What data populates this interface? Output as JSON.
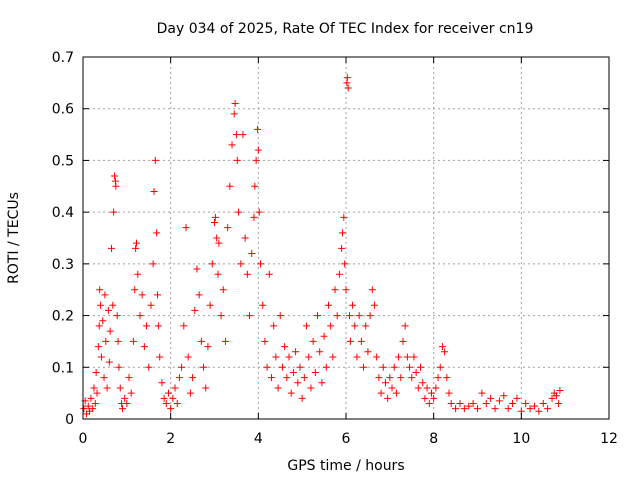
{
  "chart_data": {
    "type": "scatter",
    "title": "Day 034 of 2025, Rate Of TEC Index for receiver cn19",
    "xlabel": "GPS time / hours",
    "ylabel": "ROTI / TECUs",
    "xlim": [
      0,
      12
    ],
    "ylim": [
      0,
      0.7
    ],
    "xticks": [
      "0",
      "2",
      "4",
      "6",
      "8",
      "10",
      "12"
    ],
    "yticks": [
      "0",
      "0.1",
      "0.2",
      "0.3",
      "0.4",
      "0.5",
      "0.6",
      "0.7"
    ],
    "xtick_values": [
      0,
      2,
      4,
      6,
      8,
      10,
      12
    ],
    "ytick_values": [
      0,
      0.1,
      0.2,
      0.3,
      0.4,
      0.5,
      0.6,
      0.7
    ],
    "grid": true,
    "marker": "+",
    "color": "#ff0000",
    "series": [
      {
        "name": "ROTI",
        "points": [
          [
            0.02,
            0.02
          ],
          [
            0.05,
            0.035
          ],
          [
            0.08,
            0.01
          ],
          [
            0.12,
            0.025
          ],
          [
            0.15,
            0.015
          ],
          [
            0.18,
            0.04
          ],
          [
            0.22,
            0.02
          ],
          [
            0.25,
            0.06
          ],
          [
            0.28,
            0.03
          ],
          [
            0.3,
            0.09
          ],
          [
            0.32,
            0.05
          ],
          [
            0.35,
            0.14
          ],
          [
            0.37,
            0.18
          ],
          [
            0.38,
            0.25
          ],
          [
            0.4,
            0.22
          ],
          [
            0.42,
            0.12
          ],
          [
            0.45,
            0.19
          ],
          [
            0.48,
            0.08
          ],
          [
            0.5,
            0.24
          ],
          [
            0.52,
            0.15
          ],
          [
            0.55,
            0.06
          ],
          [
            0.58,
            0.21
          ],
          [
            0.6,
            0.11
          ],
          [
            0.62,
            0.17
          ],
          [
            0.65,
            0.33
          ],
          [
            0.68,
            0.22
          ],
          [
            0.7,
            0.4
          ],
          [
            0.72,
            0.47
          ],
          [
            0.74,
            0.46
          ],
          [
            0.75,
            0.45
          ],
          [
            0.78,
            0.2
          ],
          [
            0.8,
            0.15
          ],
          [
            0.82,
            0.1
          ],
          [
            0.85,
            0.06
          ],
          [
            0.88,
            0.03
          ],
          [
            0.9,
            0.02
          ],
          [
            0.95,
            0.04
          ],
          [
            1.0,
            0.03
          ],
          [
            1.05,
            0.08
          ],
          [
            1.1,
            0.05
          ],
          [
            1.15,
            0.15
          ],
          [
            1.18,
            0.25
          ],
          [
            1.2,
            0.33
          ],
          [
            1.22,
            0.34
          ],
          [
            1.25,
            0.28
          ],
          [
            1.3,
            0.2
          ],
          [
            1.35,
            0.24
          ],
          [
            1.4,
            0.14
          ],
          [
            1.45,
            0.18
          ],
          [
            1.5,
            0.1
          ],
          [
            1.55,
            0.22
          ],
          [
            1.6,
            0.3
          ],
          [
            1.62,
            0.44
          ],
          [
            1.65,
            0.5
          ],
          [
            1.68,
            0.36
          ],
          [
            1.7,
            0.24
          ],
          [
            1.72,
            0.18
          ],
          [
            1.75,
            0.12
          ],
          [
            1.8,
            0.07
          ],
          [
            1.85,
            0.04
          ],
          [
            1.9,
            0.03
          ],
          [
            1.95,
            0.05
          ],
          [
            2.0,
            0.02
          ],
          [
            2.05,
            0.04
          ],
          [
            2.1,
            0.06
          ],
          [
            2.15,
            0.03
          ],
          [
            2.2,
            0.08
          ],
          [
            2.25,
            0.1
          ],
          [
            2.3,
            0.18
          ],
          [
            2.35,
            0.37
          ],
          [
            2.4,
            0.12
          ],
          [
            2.45,
            0.05
          ],
          [
            2.5,
            0.08
          ],
          [
            2.55,
            0.21
          ],
          [
            2.6,
            0.29
          ],
          [
            2.65,
            0.24
          ],
          [
            2.7,
            0.15
          ],
          [
            2.75,
            0.1
          ],
          [
            2.8,
            0.06
          ],
          [
            2.85,
            0.14
          ],
          [
            2.9,
            0.22
          ],
          [
            2.95,
            0.3
          ],
          [
            3.0,
            0.38
          ],
          [
            3.02,
            0.39
          ],
          [
            3.05,
            0.35
          ],
          [
            3.08,
            0.28
          ],
          [
            3.1,
            0.34
          ],
          [
            3.15,
            0.2
          ],
          [
            3.2,
            0.25
          ],
          [
            3.25,
            0.15
          ],
          [
            3.3,
            0.37
          ],
          [
            3.35,
            0.45
          ],
          [
            3.4,
            0.53
          ],
          [
            3.45,
            0.59
          ],
          [
            3.47,
            0.61
          ],
          [
            3.5,
            0.55
          ],
          [
            3.52,
            0.5
          ],
          [
            3.55,
            0.4
          ],
          [
            3.6,
            0.3
          ],
          [
            3.65,
            0.55
          ],
          [
            3.7,
            0.35
          ],
          [
            3.75,
            0.28
          ],
          [
            3.8,
            0.2
          ],
          [
            3.85,
            0.32
          ],
          [
            3.9,
            0.39
          ],
          [
            3.92,
            0.45
          ],
          [
            3.95,
            0.5
          ],
          [
            3.98,
            0.56
          ],
          [
            4.0,
            0.52
          ],
          [
            4.02,
            0.4
          ],
          [
            4.05,
            0.3
          ],
          [
            4.1,
            0.22
          ],
          [
            4.15,
            0.15
          ],
          [
            4.2,
            0.1
          ],
          [
            4.25,
            0.28
          ],
          [
            4.3,
            0.08
          ],
          [
            4.35,
            0.18
          ],
          [
            4.4,
            0.12
          ],
          [
            4.45,
            0.06
          ],
          [
            4.5,
            0.2
          ],
          [
            4.55,
            0.1
          ],
          [
            4.6,
            0.14
          ],
          [
            4.65,
            0.08
          ],
          [
            4.7,
            0.12
          ],
          [
            4.75,
            0.05
          ],
          [
            4.8,
            0.09
          ],
          [
            4.85,
            0.13
          ],
          [
            4.9,
            0.07
          ],
          [
            4.95,
            0.1
          ],
          [
            5.0,
            0.04
          ],
          [
            5.05,
            0.08
          ],
          [
            5.1,
            0.18
          ],
          [
            5.15,
            0.12
          ],
          [
            5.2,
            0.06
          ],
          [
            5.25,
            0.15
          ],
          [
            5.3,
            0.09
          ],
          [
            5.35,
            0.2
          ],
          [
            5.4,
            0.13
          ],
          [
            5.45,
            0.07
          ],
          [
            5.5,
            0.16
          ],
          [
            5.55,
            0.1
          ],
          [
            5.6,
            0.22
          ],
          [
            5.65,
            0.18
          ],
          [
            5.7,
            0.12
          ],
          [
            5.75,
            0.25
          ],
          [
            5.8,
            0.2
          ],
          [
            5.85,
            0.28
          ],
          [
            5.9,
            0.33
          ],
          [
            5.92,
            0.36
          ],
          [
            5.95,
            0.39
          ],
          [
            5.97,
            0.3
          ],
          [
            6.0,
            0.25
          ],
          [
            6.02,
            0.65
          ],
          [
            6.03,
            0.66
          ],
          [
            6.05,
            0.64
          ],
          [
            6.08,
            0.2
          ],
          [
            6.1,
            0.15
          ],
          [
            6.15,
            0.22
          ],
          [
            6.2,
            0.18
          ],
          [
            6.25,
            0.12
          ],
          [
            6.3,
            0.2
          ],
          [
            6.35,
            0.15
          ],
          [
            6.4,
            0.1
          ],
          [
            6.45,
            0.18
          ],
          [
            6.5,
            0.13
          ],
          [
            6.55,
            0.2
          ],
          [
            6.6,
            0.25
          ],
          [
            6.65,
            0.22
          ],
          [
            6.7,
            0.12
          ],
          [
            6.75,
            0.08
          ],
          [
            6.8,
            0.05
          ],
          [
            6.85,
            0.1
          ],
          [
            6.9,
            0.07
          ],
          [
            6.95,
            0.04
          ],
          [
            7.0,
            0.08
          ],
          [
            7.05,
            0.06
          ],
          [
            7.1,
            0.1
          ],
          [
            7.15,
            0.05
          ],
          [
            7.2,
            0.12
          ],
          [
            7.25,
            0.08
          ],
          [
            7.3,
            0.15
          ],
          [
            7.35,
            0.18
          ],
          [
            7.4,
            0.12
          ],
          [
            7.45,
            0.1
          ],
          [
            7.5,
            0.08
          ],
          [
            7.55,
            0.12
          ],
          [
            7.6,
            0.09
          ],
          [
            7.65,
            0.06
          ],
          [
            7.7,
            0.1
          ],
          [
            7.75,
            0.07
          ],
          [
            7.8,
            0.04
          ],
          [
            7.85,
            0.06
          ],
          [
            7.9,
            0.03
          ],
          [
            7.95,
            0.05
          ],
          [
            8.0,
            0.04
          ],
          [
            8.05,
            0.06
          ],
          [
            8.1,
            0.08
          ],
          [
            8.15,
            0.1
          ],
          [
            8.2,
            0.14
          ],
          [
            8.25,
            0.13
          ],
          [
            8.3,
            0.08
          ],
          [
            8.35,
            0.05
          ],
          [
            8.4,
            0.03
          ],
          [
            8.5,
            0.02
          ],
          [
            8.6,
            0.03
          ],
          [
            8.7,
            0.02
          ],
          [
            8.8,
            0.025
          ],
          [
            8.9,
            0.03
          ],
          [
            9.0,
            0.02
          ],
          [
            9.1,
            0.05
          ],
          [
            9.2,
            0.03
          ],
          [
            9.3,
            0.04
          ],
          [
            9.4,
            0.02
          ],
          [
            9.5,
            0.035
          ],
          [
            9.6,
            0.045
          ],
          [
            9.7,
            0.02
          ],
          [
            9.8,
            0.03
          ],
          [
            9.9,
            0.04
          ],
          [
            10.0,
            0.015
          ],
          [
            10.1,
            0.03
          ],
          [
            10.2,
            0.02
          ],
          [
            10.3,
            0.025
          ],
          [
            10.4,
            0.015
          ],
          [
            10.5,
            0.03
          ],
          [
            10.6,
            0.02
          ],
          [
            10.7,
            0.04
          ],
          [
            10.75,
            0.05
          ],
          [
            10.8,
            0.045
          ],
          [
            10.85,
            0.03
          ],
          [
            10.88,
            0.055
          ]
        ]
      }
    ]
  }
}
